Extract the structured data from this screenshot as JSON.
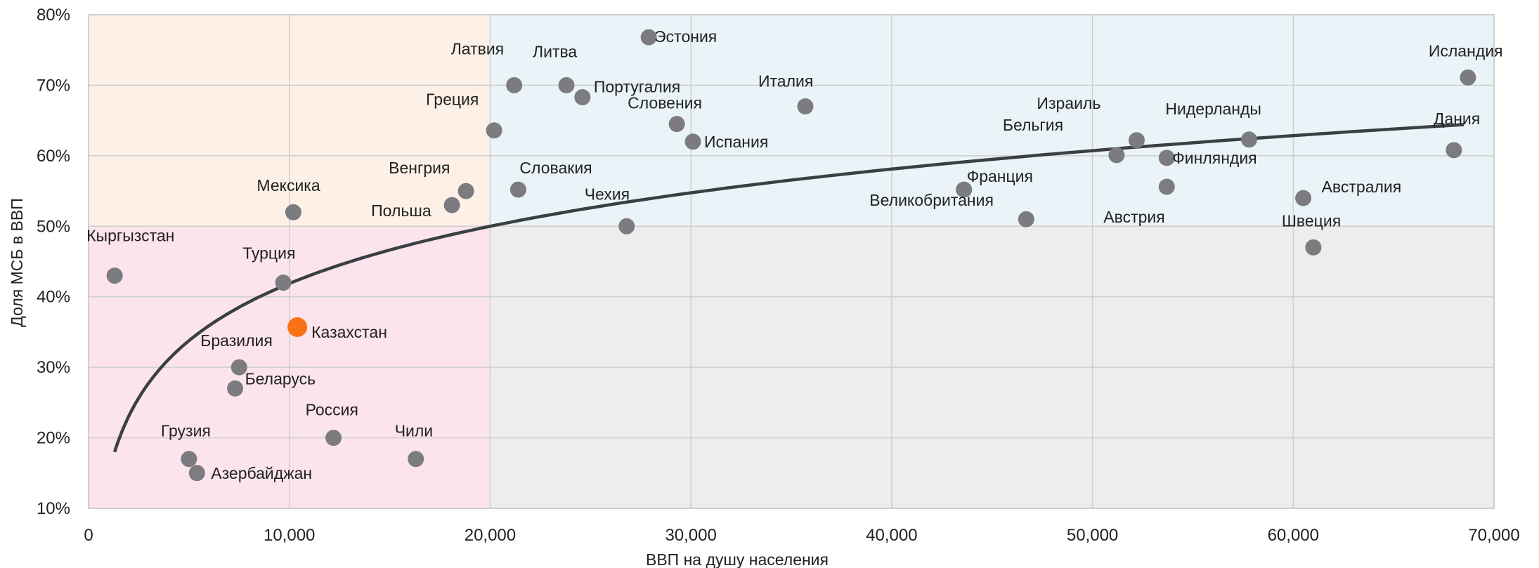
{
  "chart_data": {
    "type": "scatter",
    "xlabel": "ВВП на душу населения",
    "ylabel": "Доля МСБ в ВВП",
    "xlim": [
      0,
      70000
    ],
    "ylim": [
      10,
      80
    ],
    "x_ticks": [
      0,
      10000,
      20000,
      30000,
      40000,
      50000,
      60000,
      70000
    ],
    "x_tick_labels": [
      "0",
      "10,000",
      "20,000",
      "30,000",
      "40,000",
      "50,000",
      "60,000",
      "70,000"
    ],
    "y_ticks": [
      10,
      20,
      30,
      40,
      50,
      60,
      70,
      80
    ],
    "y_tick_labels": [
      "10%",
      "20%",
      "30%",
      "40%",
      "50%",
      "60%",
      "70%",
      "80%"
    ],
    "grid": true,
    "regions": [
      {
        "x": [
          0,
          20000
        ],
        "y": [
          50,
          80
        ],
        "color": "#fdf0e6"
      },
      {
        "x": [
          20000,
          70000
        ],
        "y": [
          50,
          80
        ],
        "color": "#eaf3f8"
      },
      {
        "x": [
          0,
          20000
        ],
        "y": [
          10,
          50
        ],
        "color": "#fbe4ec"
      },
      {
        "x": [
          20000,
          70000
        ],
        "y": [
          10,
          50
        ],
        "color": "#ededed"
      }
    ],
    "point_color": "#7b7b80",
    "highlight_color": "#f97316",
    "trend_color": "#3a3f44",
    "trendline": {
      "type": "logarithmic",
      "x_start": 1300,
      "x_end": 68500,
      "y_at_start": 18,
      "y_at_20000": 50
    },
    "points": [
      {
        "name": "Кыргызстан",
        "x": 1300,
        "y": 43
      },
      {
        "name": "Мексика",
        "x": 10200,
        "y": 52
      },
      {
        "name": "Турция",
        "x": 9700,
        "y": 42
      },
      {
        "name": "Казахстан",
        "x": 10400,
        "y": 35.7,
        "highlight": true
      },
      {
        "name": "Бразилия",
        "x": 7500,
        "y": 30
      },
      {
        "name": "Беларусь",
        "x": 7300,
        "y": 27
      },
      {
        "name": "Россия",
        "x": 12200,
        "y": 20
      },
      {
        "name": "Чили",
        "x": 16300,
        "y": 17
      },
      {
        "name": "Грузия",
        "x": 5000,
        "y": 17
      },
      {
        "name": "Азербайджан",
        "x": 5400,
        "y": 15
      },
      {
        "name": "Латвия",
        "x": 21200,
        "y": 70
      },
      {
        "name": "Литва",
        "x": 23800,
        "y": 70
      },
      {
        "name": "Эстония",
        "x": 27900,
        "y": 76.8
      },
      {
        "name": "Португалия",
        "x": 24600,
        "y": 68.3
      },
      {
        "name": "Греция",
        "x": 20200,
        "y": 63.6
      },
      {
        "name": "Словения",
        "x": 29300,
        "y": 64.5
      },
      {
        "name": "Испания",
        "x": 30100,
        "y": 62
      },
      {
        "name": "Италия",
        "x": 35700,
        "y": 67
      },
      {
        "name": "Венгрия",
        "x": 18800,
        "y": 55
      },
      {
        "name": "Польша",
        "x": 18100,
        "y": 53
      },
      {
        "name": "Словакия",
        "x": 21400,
        "y": 55.2
      },
      {
        "name": "Чехия",
        "x": 26800,
        "y": 50
      },
      {
        "name": "Франция",
        "x": 43600,
        "y": 55.2
      },
      {
        "name": "Великобритания",
        "x": 46700,
        "y": 51
      },
      {
        "name": "Бельгия",
        "x": 51200,
        "y": 60.1
      },
      {
        "name": "Израиль",
        "x": 52200,
        "y": 62.2
      },
      {
        "name": "Финляндия",
        "x": 53700,
        "y": 59.7
      },
      {
        "name": "Австрия",
        "x": 53700,
        "y": 55.6
      },
      {
        "name": "Нидерланды",
        "x": 57800,
        "y": 62.3
      },
      {
        "name": "Австралия",
        "x": 60500,
        "y": 54
      },
      {
        "name": "Швеция",
        "x": 61000,
        "y": 47
      },
      {
        "name": "Дания",
        "x": 68000,
        "y": 60.8
      },
      {
        "name": "Исландия",
        "x": 68700,
        "y": 71.1
      }
    ]
  }
}
